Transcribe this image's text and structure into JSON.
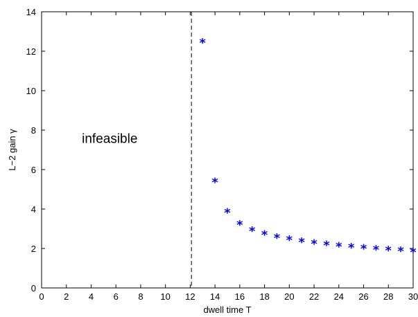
{
  "chart_data": {
    "type": "scatter",
    "xlabel": "dwell time T",
    "ylabel_main": "L−2 gain ",
    "ylabel_symbol": "γ",
    "xlim": [
      0,
      30
    ],
    "ylim": [
      0,
      14
    ],
    "xticks": [
      0,
      2,
      4,
      6,
      8,
      10,
      12,
      14,
      16,
      18,
      20,
      22,
      24,
      26,
      28,
      30
    ],
    "yticks": [
      0,
      2,
      4,
      6,
      8,
      10,
      12,
      14
    ],
    "grid": false,
    "marker": "*",
    "marker_color": "#0000ff",
    "series": [
      {
        "x": [
          13,
          14,
          15,
          16,
          17,
          18,
          19,
          20,
          21,
          22,
          23,
          24,
          25,
          26,
          27,
          28,
          29,
          30
        ],
        "y": [
          12.45,
          5.38,
          3.85,
          3.22,
          2.92,
          2.72,
          2.57,
          2.45,
          2.35,
          2.27,
          2.2,
          2.13,
          2.07,
          2.02,
          1.97,
          1.93,
          1.89,
          1.85
        ]
      }
    ],
    "vline": {
      "x": 12.1,
      "style": "dashed",
      "color": "#000000"
    },
    "annotations": [
      {
        "text": "infeasible",
        "x": 5.5,
        "y": 7.6
      }
    ]
  }
}
